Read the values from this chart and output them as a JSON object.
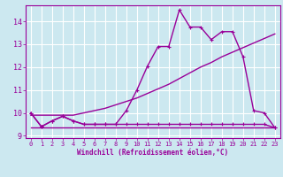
{
  "background_color": "#cce8f0",
  "grid_color": "#ffffff",
  "line_color": "#990099",
  "xlabel": "Windchill (Refroidissement éolien,°C)",
  "xlim": [
    -0.5,
    23.5
  ],
  "ylim": [
    8.9,
    14.7
  ],
  "xticks": [
    0,
    1,
    2,
    3,
    4,
    5,
    6,
    7,
    8,
    9,
    10,
    11,
    12,
    13,
    14,
    15,
    16,
    17,
    18,
    19,
    20,
    21,
    22,
    23
  ],
  "yticks": [
    9,
    10,
    11,
    12,
    13,
    14
  ],
  "series": [
    {
      "x": [
        0,
        1,
        2,
        3,
        4,
        5,
        6,
        7,
        8,
        9,
        10,
        11,
        12,
        13,
        14,
        15,
        16,
        17,
        18,
        19,
        20,
        21,
        22,
        23
      ],
      "y": [
        9.35,
        9.35,
        9.35,
        9.35,
        9.35,
        9.35,
        9.35,
        9.35,
        9.35,
        9.35,
        9.35,
        9.35,
        9.35,
        9.35,
        9.35,
        9.35,
        9.35,
        9.35,
        9.35,
        9.35,
        9.35,
        9.35,
        9.35,
        9.35
      ],
      "marker": null,
      "linewidth": 1.0
    },
    {
      "x": [
        0,
        1,
        2,
        3,
        4,
        5,
        6,
        7,
        8,
        9,
        10,
        11,
        12,
        13,
        14,
        15,
        16,
        17,
        18,
        19,
        20,
        21,
        22,
        23
      ],
      "y": [
        10.0,
        9.4,
        9.65,
        9.85,
        9.65,
        9.5,
        9.5,
        9.5,
        9.5,
        9.5,
        9.5,
        9.5,
        9.5,
        9.5,
        9.5,
        9.5,
        9.5,
        9.5,
        9.5,
        9.5,
        9.5,
        9.5,
        9.5,
        9.35
      ],
      "marker": "+",
      "linewidth": 1.0
    },
    {
      "x": [
        0,
        1,
        2,
        3,
        4,
        5,
        6,
        7,
        8,
        9,
        10,
        11,
        12,
        13,
        14,
        15,
        16,
        17,
        18,
        19,
        20,
        21,
        22,
        23
      ],
      "y": [
        10.0,
        9.4,
        9.65,
        9.85,
        9.65,
        9.5,
        9.5,
        9.5,
        9.5,
        10.1,
        11.0,
        12.05,
        12.9,
        12.9,
        14.5,
        13.75,
        13.75,
        13.2,
        13.55,
        13.55,
        12.45,
        10.1,
        10.0,
        9.35
      ],
      "marker": "+",
      "linewidth": 1.0
    },
    {
      "x": [
        0,
        1,
        2,
        3,
        4,
        5,
        6,
        7,
        8,
        9,
        10,
        11,
        12,
        13,
        14,
        15,
        16,
        17,
        18,
        19,
        20,
        21,
        22,
        23
      ],
      "y": [
        9.9,
        9.9,
        9.9,
        9.9,
        9.9,
        10.0,
        10.1,
        10.2,
        10.35,
        10.5,
        10.65,
        10.85,
        11.05,
        11.25,
        11.5,
        11.75,
        12.0,
        12.2,
        12.45,
        12.65,
        12.85,
        13.05,
        13.25,
        13.45
      ],
      "marker": null,
      "linewidth": 1.0
    }
  ]
}
